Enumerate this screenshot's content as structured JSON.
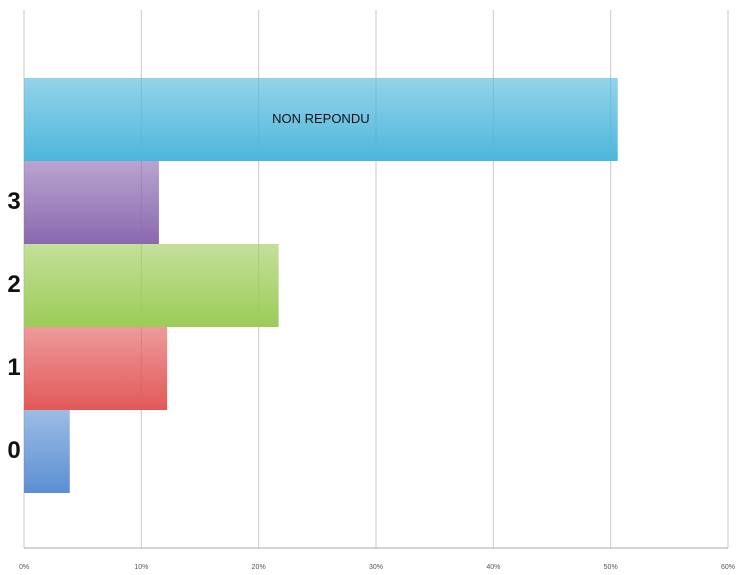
{
  "chart_data": {
    "type": "barh",
    "categories": [
      "NON REPONDU",
      "3",
      "2",
      "1",
      "0"
    ],
    "values": [
      50.6,
      11.5,
      21.7,
      12.2,
      3.9
    ],
    "colors": [
      "#4db6dc",
      "#8a68b0",
      "#9ccb58",
      "#e25858",
      "#5b8fd2"
    ],
    "xlim": [
      0,
      60
    ],
    "xticks": [
      {
        "value": 0,
        "label": "0%"
      },
      {
        "value": 10,
        "label": "10%"
      },
      {
        "value": 20,
        "label": "20%"
      },
      {
        "value": 30,
        "label": "30%"
      },
      {
        "value": 40,
        "label": "40%"
      },
      {
        "value": 50,
        "label": "50%"
      },
      {
        "value": 60,
        "label": "60%"
      }
    ],
    "grid": true
  }
}
